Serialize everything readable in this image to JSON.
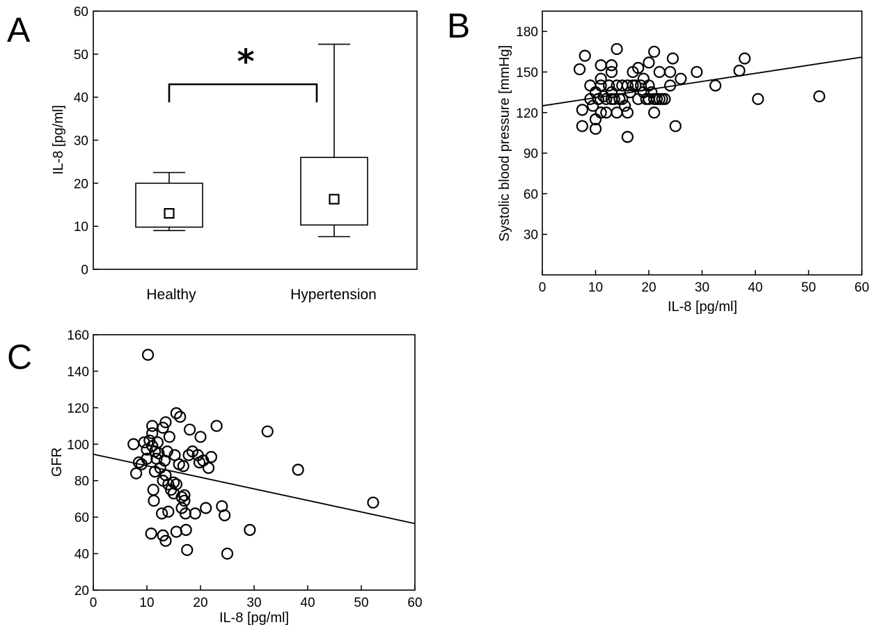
{
  "chart_data": [
    {
      "panel": "A",
      "type": "box",
      "ylabel": "IL-8 [pg/ml]",
      "ylim": [
        0,
        60
      ],
      "yticks": [
        0,
        10,
        20,
        30,
        40,
        50,
        60
      ],
      "categories": [
        "Healthy",
        "Hypertension"
      ],
      "boxes": [
        {
          "whisker_low": 9,
          "q1": 9.8,
          "median": 13,
          "q3": 20,
          "whisker_high": 22.5
        },
        {
          "whisker_low": 7.6,
          "q1": 10.3,
          "median": 16.3,
          "q3": 26,
          "whisker_high": 52.3
        }
      ],
      "significance": {
        "label": "*",
        "level": 43
      }
    },
    {
      "panel": "B",
      "type": "scatter",
      "xlabel": "IL-8 [pg/ml]",
      "ylabel": "Systolic blood pressure [mmHg]",
      "xlim": [
        0,
        60
      ],
      "ylim": [
        0,
        195
      ],
      "xticks": [
        0,
        10,
        20,
        30,
        40,
        50,
        60
      ],
      "yticks": [
        30,
        60,
        90,
        120,
        150,
        180
      ],
      "fit_line": {
        "x": [
          0,
          60
        ],
        "y": [
          125,
          161
        ]
      },
      "points": [
        [
          7,
          152
        ],
        [
          7.5,
          122
        ],
        [
          7.5,
          110
        ],
        [
          8,
          162
        ],
        [
          9,
          140
        ],
        [
          9,
          130
        ],
        [
          9.5,
          125
        ],
        [
          10,
          135
        ],
        [
          10,
          115
        ],
        [
          10,
          108
        ],
        [
          10.5,
          130
        ],
        [
          10.5,
          130
        ],
        [
          11,
          155
        ],
        [
          11,
          145
        ],
        [
          11,
          140
        ],
        [
          11,
          120
        ],
        [
          11.5,
          132
        ],
        [
          12,
          130
        ],
        [
          12,
          120
        ],
        [
          12.5,
          140
        ],
        [
          13,
          155
        ],
        [
          13,
          150
        ],
        [
          13,
          135
        ],
        [
          13,
          130
        ],
        [
          13.5,
          130
        ],
        [
          14,
          167
        ],
        [
          14,
          140
        ],
        [
          14,
          120
        ],
        [
          14.5,
          130
        ],
        [
          15,
          140
        ],
        [
          15,
          130
        ],
        [
          15.5,
          125
        ],
        [
          16,
          140
        ],
        [
          16,
          120
        ],
        [
          16,
          102
        ],
        [
          16.5,
          135
        ],
        [
          17,
          150
        ],
        [
          17,
          140
        ],
        [
          17.5,
          140
        ],
        [
          18,
          153
        ],
        [
          18,
          130
        ],
        [
          18.5,
          140
        ],
        [
          19,
          145
        ],
        [
          19,
          135
        ],
        [
          19.5,
          130
        ],
        [
          20,
          157
        ],
        [
          20,
          140
        ],
        [
          20,
          130
        ],
        [
          20.5,
          135
        ],
        [
          21,
          165
        ],
        [
          21,
          130
        ],
        [
          21,
          120
        ],
        [
          21.5,
          130
        ],
        [
          22,
          150
        ],
        [
          22,
          130
        ],
        [
          22.5,
          130
        ],
        [
          23,
          130
        ],
        [
          24,
          150
        ],
        [
          24,
          140
        ],
        [
          24.5,
          160
        ],
        [
          25,
          110
        ],
        [
          26,
          145
        ],
        [
          29,
          150
        ],
        [
          32.5,
          140
        ],
        [
          37,
          151
        ],
        [
          38,
          160
        ],
        [
          40.5,
          130
        ],
        [
          52,
          132
        ]
      ]
    },
    {
      "panel": "C",
      "type": "scatter",
      "xlabel": "IL-8 [pg/ml]",
      "ylabel": "GFR",
      "xlim": [
        0,
        60
      ],
      "ylim": [
        20,
        160
      ],
      "xticks": [
        0,
        10,
        20,
        30,
        40,
        50,
        60
      ],
      "yticks": [
        20,
        40,
        60,
        80,
        100,
        120,
        140,
        160
      ],
      "fit_line": {
        "x": [
          0,
          60
        ],
        "y": [
          94.5,
          56.5
        ]
      },
      "points": [
        [
          7.5,
          100
        ],
        [
          8,
          84
        ],
        [
          8.5,
          90
        ],
        [
          9,
          89
        ],
        [
          9.5,
          101
        ],
        [
          10,
          97
        ],
        [
          10,
          92
        ],
        [
          10.2,
          149
        ],
        [
          10.5,
          102
        ],
        [
          10.8,
          51
        ],
        [
          11,
          110
        ],
        [
          11,
          106
        ],
        [
          11,
          99
        ],
        [
          11.2,
          75
        ],
        [
          11.3,
          69
        ],
        [
          11.5,
          96
        ],
        [
          11.5,
          85
        ],
        [
          11.8,
          92
        ],
        [
          12,
          101
        ],
        [
          12.2,
          95
        ],
        [
          12.5,
          87
        ],
        [
          12.8,
          62
        ],
        [
          13,
          109
        ],
        [
          13,
          80
        ],
        [
          13,
          50
        ],
        [
          13.3,
          91
        ],
        [
          13.5,
          112
        ],
        [
          13.5,
          83
        ],
        [
          13.5,
          47
        ],
        [
          13.8,
          96
        ],
        [
          14,
          78
        ],
        [
          14,
          63
        ],
        [
          14.2,
          104
        ],
        [
          14.5,
          75
        ],
        [
          15,
          79
        ],
        [
          15,
          73
        ],
        [
          15.2,
          94
        ],
        [
          15.5,
          117
        ],
        [
          15.5,
          78
        ],
        [
          15.5,
          52
        ],
        [
          16,
          89
        ],
        [
          16.2,
          115
        ],
        [
          16.5,
          71
        ],
        [
          16.5,
          65
        ],
        [
          16.8,
          88
        ],
        [
          17,
          72
        ],
        [
          17,
          69
        ],
        [
          17.2,
          62
        ],
        [
          17.3,
          53
        ],
        [
          17.5,
          42
        ],
        [
          17.8,
          94
        ],
        [
          18,
          108
        ],
        [
          18.5,
          96
        ],
        [
          19,
          62
        ],
        [
          19.5,
          94
        ],
        [
          19.8,
          90
        ],
        [
          20,
          104
        ],
        [
          20.5,
          91
        ],
        [
          21,
          65
        ],
        [
          21.5,
          87
        ],
        [
          22,
          93
        ],
        [
          23,
          110
        ],
        [
          24,
          66
        ],
        [
          24.5,
          61
        ],
        [
          25,
          40
        ],
        [
          29.2,
          53
        ],
        [
          32.5,
          107
        ],
        [
          38.2,
          86
        ],
        [
          52.2,
          68
        ]
      ]
    }
  ],
  "panels": {
    "a": {
      "letter": "A",
      "ylabel": "IL-8 [pg/ml]",
      "categories": [
        "Healthy",
        "Hypertension"
      ],
      "sig": "*"
    },
    "b": {
      "letter": "B",
      "xlabel": "IL-8 [pg/ml]",
      "ylabel": "Systolic blood pressure [mmHg]"
    },
    "c": {
      "letter": "C",
      "xlabel": "IL-8 [pg/ml]",
      "ylabel": "GFR"
    }
  }
}
